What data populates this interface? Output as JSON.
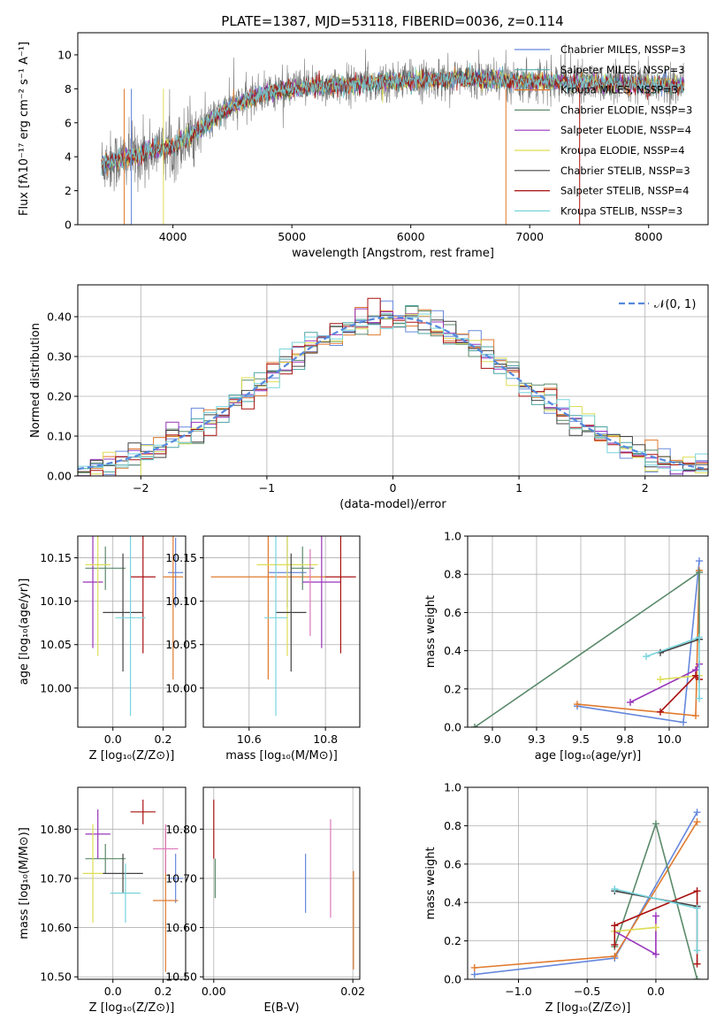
{
  "figure_title": "PLATE=1387, MJD=53118, FIBERID=0036, z=0.114",
  "chart_data": [
    {
      "id": "spectrum",
      "type": "line",
      "title": "PLATE=1387, MJD=53118, FIBERID=0036, z=0.114",
      "xlabel": "wavelength [Angstrom, rest frame]",
      "ylabel": "Flux [fλ10⁻¹⁷ erg cm⁻² s⁻¹ A⁻¹]",
      "xlim": [
        3200,
        8500
      ],
      "ylim": [
        0,
        11.3
      ],
      "xticks": [
        4000,
        5000,
        6000,
        7000,
        8000
      ],
      "yticks": [
        0,
        2,
        4,
        6,
        8,
        10
      ],
      "grid": false,
      "legend": "top-right",
      "legend_entries": [
        {
          "label": "Chabrier MILES, NSSP=3",
          "color": "#6688dd"
        },
        {
          "label": "Salpeter MILES, NSSP=3",
          "color": "#4aa3a3"
        },
        {
          "label": "Kroupa MILES, NSSP=3",
          "color": "#e07a2e"
        },
        {
          "label": "Chabrier ELODIE, NSSP=3",
          "color": "#5a8a6a"
        },
        {
          "label": "Salpeter ELODIE, NSSP=4",
          "color": "#9933bb"
        },
        {
          "label": "Kroupa ELODIE, NSSP=4",
          "color": "#dddd55"
        },
        {
          "label": "Chabrier STELIB, NSSP=3",
          "color": "#444444"
        },
        {
          "label": "Salpeter STELIB, NSSP=4",
          "color": "#aa1111"
        },
        {
          "label": "Kroupa STELIB, NSSP=3",
          "color": "#77d4dd"
        }
      ],
      "data_color": "#777777",
      "model_envelope": {
        "x": [
          3400,
          3600,
          3800,
          4000,
          4200,
          4500,
          4800,
          5200,
          5600,
          6000,
          6400,
          6800,
          7200,
          7600,
          8000,
          8300
        ],
        "y": [
          3.6,
          3.9,
          4.3,
          4.6,
          5.5,
          7.0,
          7.8,
          8.1,
          8.3,
          8.5,
          8.6,
          8.5,
          8.4,
          8.3,
          8.2,
          8.2
        ]
      }
    },
    {
      "id": "residuals",
      "type": "histogram",
      "xlabel": "(data-model)/error",
      "ylabel": "Normed distribution",
      "xlim": [
        -2.5,
        2.5
      ],
      "ylim": [
        0,
        0.48
      ],
      "xticks": [
        -2,
        -1,
        0,
        1,
        2
      ],
      "yticks": [
        0.0,
        0.1,
        0.2,
        0.3,
        0.4
      ],
      "grid": true,
      "legend": "top-right",
      "reference_curve": {
        "label": "𝒩(0, 1)",
        "color": "#5588dd"
      },
      "bin_width": 0.1
    },
    {
      "id": "age_vs_z",
      "type": "errorbar",
      "xlabel": "Z [log₁₀(Z/Z⊙)]",
      "ylabel": "age  [log₁₀(age/yr)]",
      "xlim": [
        -0.14,
        0.29
      ],
      "ylim": [
        9.955,
        10.175
      ],
      "xticks": [
        0.0,
        0.2
      ],
      "yticks": [
        10.0,
        10.05,
        10.1,
        10.15
      ],
      "grid": true,
      "points": [
        {
          "color": "#6688dd",
          "x": 0.25,
          "xerr": 0.03,
          "y": 10.133,
          "yerr": 0.04
        },
        {
          "color": "#e07a2e",
          "x": 0.24,
          "xerr": 0.04,
          "y": 10.128,
          "yerr": 0.118
        },
        {
          "color": "#5a8a6a",
          "x": -0.03,
          "xerr": 0.08,
          "y": 10.138,
          "yerr": 0.025
        },
        {
          "color": "#9933bb",
          "x": -0.08,
          "xerr": 0.04,
          "y": 10.122,
          "yerr": 0.076
        },
        {
          "color": "#dddd55",
          "x": -0.06,
          "xerr": 0.05,
          "y": 10.142,
          "yerr": 0.105
        },
        {
          "color": "#444444",
          "x": 0.04,
          "xerr": 0.08,
          "y": 10.087,
          "yerr": 0.068
        },
        {
          "color": "#aa1111",
          "x": 0.12,
          "xerr": 0.05,
          "y": 10.128,
          "yerr": 0.088
        },
        {
          "color": "#77d4dd",
          "x": 0.07,
          "xerr": 0.06,
          "y": 10.081,
          "yerr": 0.113
        }
      ]
    },
    {
      "id": "age_vs_mass",
      "type": "errorbar",
      "xlabel": "mass [log₁₀(M/M⊙)]",
      "ylabel": "",
      "xlim": [
        10.48,
        10.89
      ],
      "ylim": [
        9.955,
        10.175
      ],
      "xticks": [
        10.6,
        10.8
      ],
      "yticks": [
        10.0,
        10.05,
        10.1,
        10.15
      ],
      "grid": true,
      "points": [
        {
          "color": "#6688dd",
          "x": 10.7,
          "xerr": 0.05,
          "y": 10.133,
          "yerr": 0.04
        },
        {
          "color": "#e07a2e",
          "x": 10.65,
          "xerr": 0.15,
          "y": 10.128,
          "yerr": 0.118
        },
        {
          "color": "#5a8a6a",
          "x": 10.74,
          "xerr": 0.03,
          "y": 10.138,
          "yerr": 0.025
        },
        {
          "color": "#9933bb",
          "x": 10.79,
          "xerr": 0.05,
          "y": 10.122,
          "yerr": 0.076
        },
        {
          "color": "#dddd55",
          "x": 10.7,
          "xerr": 0.08,
          "y": 10.142,
          "yerr": 0.105
        },
        {
          "color": "#444444",
          "x": 10.71,
          "xerr": 0.04,
          "y": 10.087,
          "yerr": 0.068
        },
        {
          "color": "#aa1111",
          "x": 10.84,
          "xerr": 0.04,
          "y": 10.128,
          "yerr": 0.088
        },
        {
          "color": "#77d4dd",
          "x": 10.67,
          "xerr": 0.03,
          "y": 10.081,
          "yerr": 0.113
        },
        {
          "color": "#dd77bb",
          "x": 10.76,
          "xerr": 0.0,
          "y": 10.11,
          "yerr": 0.05
        }
      ]
    },
    {
      "id": "mass_weight_vs_age",
      "type": "line",
      "xlabel": "age  [log₁₀(age/yr)]",
      "ylabel": "mass weight",
      "xlim": [
        8.86,
        10.22
      ],
      "ylim": [
        0,
        1
      ],
      "xticks": [
        9.0,
        9.25,
        9.5,
        9.75,
        10.0
      ],
      "yticks": [
        0.0,
        0.2,
        0.4,
        0.6,
        0.8,
        1.0
      ],
      "grid": true,
      "series": [
        {
          "color": "#6688dd",
          "x": [
            9.48,
            10.08,
            10.17
          ],
          "y": [
            0.11,
            0.025,
            0.87
          ]
        },
        {
          "color": "#e07a2e",
          "x": [
            9.48,
            10.15,
            10.17
          ],
          "y": [
            0.12,
            0.06,
            0.82
          ]
        },
        {
          "color": "#5a8a6a",
          "x": [
            8.9,
            10.17,
            10.17
          ],
          "y": [
            0.0,
            0.81,
            0.46
          ]
        },
        {
          "color": "#9933bb",
          "x": [
            9.78,
            10.15,
            10.17
          ],
          "y": [
            0.13,
            0.3,
            0.33
          ]
        },
        {
          "color": "#dddd55",
          "x": [
            9.95,
            10.17
          ],
          "y": [
            0.25,
            0.27
          ]
        },
        {
          "color": "#444444",
          "x": [
            9.95,
            10.17
          ],
          "y": [
            0.39,
            0.46
          ]
        },
        {
          "color": "#aa1111",
          "x": [
            9.95,
            10.15,
            10.17
          ],
          "y": [
            0.08,
            0.27,
            0.25
          ]
        },
        {
          "color": "#77d4dd",
          "x": [
            9.87,
            10.17,
            10.17
          ],
          "y": [
            0.37,
            0.47,
            0.15
          ]
        }
      ]
    },
    {
      "id": "mass_vs_z",
      "type": "errorbar",
      "xlabel": "Z [log₁₀(Z/Z⊙)]",
      "ylabel": "mass [log₁₀(M/M⊙)]",
      "xlim": [
        -0.14,
        0.29
      ],
      "ylim": [
        10.495,
        10.885
      ],
      "xticks": [
        0.0,
        0.2
      ],
      "yticks": [
        10.5,
        10.6,
        10.7,
        10.8
      ],
      "grid": true,
      "points": [
        {
          "color": "#6688dd",
          "x": 0.25,
          "xerr": 0.03,
          "y": 10.7,
          "yerr": 0.05
        },
        {
          "color": "#e07a2e",
          "x": 0.21,
          "xerr": 0.05,
          "y": 10.655,
          "yerr": 0.145
        },
        {
          "color": "#5a8a6a",
          "x": -0.03,
          "xerr": 0.08,
          "y": 10.74,
          "yerr": 0.03
        },
        {
          "color": "#9933bb",
          "x": -0.06,
          "xerr": 0.05,
          "y": 10.79,
          "yerr": 0.05
        },
        {
          "color": "#dddd55",
          "x": -0.08,
          "xerr": 0.04,
          "y": 10.71,
          "yerr": 0.1
        },
        {
          "color": "#444444",
          "x": 0.04,
          "xerr": 0.08,
          "y": 10.71,
          "yerr": 0.04
        },
        {
          "color": "#aa1111",
          "x": 0.12,
          "xerr": 0.05,
          "y": 10.835,
          "yerr": 0.025
        },
        {
          "color": "#77d4dd",
          "x": 0.05,
          "xerr": 0.06,
          "y": 10.67,
          "yerr": 0.06
        },
        {
          "color": "#dd77bb",
          "x": 0.21,
          "xerr": 0.05,
          "y": 10.76,
          "yerr": 0.05
        }
      ]
    },
    {
      "id": "mass_vs_ebv",
      "type": "errorbar",
      "xlabel": "E(B-V)",
      "ylabel": "",
      "xlim": [
        -0.0015,
        0.021
      ],
      "ylim": [
        10.495,
        10.885
      ],
      "xticks": [
        0.0,
        0.02
      ],
      "yticks": [
        10.5,
        10.6,
        10.7,
        10.8
      ],
      "grid": true,
      "points": [
        {
          "color": "#aa1111",
          "x": 0.0,
          "y": 10.8,
          "yerr": 0.06
        },
        {
          "color": "#5a8a6a",
          "x": 0.0002,
          "y": 10.7,
          "yerr": 0.04
        },
        {
          "color": "#6688dd",
          "x": 0.0132,
          "y": 10.69,
          "yerr": 0.06
        },
        {
          "color": "#dd77bb",
          "x": 0.0168,
          "y": 10.72,
          "yerr": 0.1
        },
        {
          "color": "#e07a2e",
          "x": 0.0201,
          "y": 10.615,
          "yerr": 0.1
        }
      ]
    },
    {
      "id": "mass_weight_vs_z",
      "type": "line",
      "xlabel": "Z [log₁₀(Z/Z⊙)]",
      "ylabel": "mass weight",
      "xlim": [
        -1.37,
        0.38
      ],
      "ylim": [
        0,
        1
      ],
      "xticks": [
        -1.0,
        -0.5,
        0.0
      ],
      "yticks": [
        0.0,
        0.2,
        0.4,
        0.6,
        0.8,
        1.0
      ],
      "grid": true,
      "series": [
        {
          "color": "#6688dd",
          "x": [
            -1.32,
            -0.3,
            0.3
          ],
          "y": [
            0.025,
            0.11,
            0.87
          ]
        },
        {
          "color": "#e07a2e",
          "x": [
            -1.32,
            -0.3,
            0.3
          ],
          "y": [
            0.06,
            0.12,
            0.82
          ]
        },
        {
          "color": "#5a8a6a",
          "x": [
            -0.3,
            0.0,
            0.3
          ],
          "y": [
            0.17,
            0.81,
            0.0
          ]
        },
        {
          "color": "#9933bb",
          "x": [
            -0.3,
            0.0,
            0.0
          ],
          "y": [
            0.25,
            0.13,
            0.33
          ]
        },
        {
          "color": "#dddd55",
          "x": [
            -0.3,
            0.0
          ],
          "y": [
            0.25,
            0.27
          ]
        },
        {
          "color": "#444444",
          "x": [
            -0.3,
            0.3
          ],
          "y": [
            0.46,
            0.38
          ]
        },
        {
          "color": "#aa1111",
          "x": [
            -0.3,
            -0.3,
            0.3,
            0.3
          ],
          "y": [
            0.18,
            0.28,
            0.46,
            0.08
          ]
        },
        {
          "color": "#77d4dd",
          "x": [
            -0.3,
            0.3,
            0.3
          ],
          "y": [
            0.47,
            0.37,
            0.15
          ]
        }
      ]
    }
  ]
}
